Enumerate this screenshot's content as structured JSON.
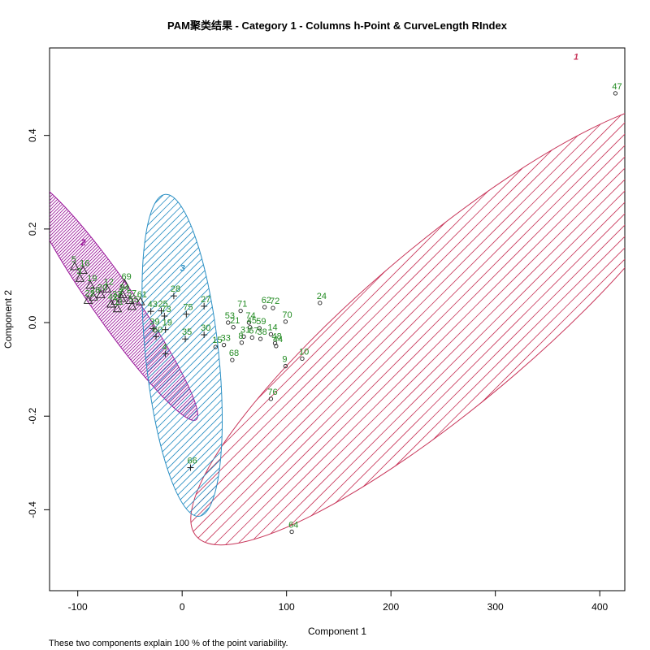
{
  "chart_data": {
    "type": "scatter",
    "title": "PAM聚类结果 - Category  1  - Columns  h-Point  &  CurveLength RIndex",
    "xlabel": "Component 1",
    "ylabel": "Component 2",
    "caption": "These two components explain 100 % of the point variability.",
    "xlim": [
      -127,
      424
    ],
    "ylim": [
      -0.573,
      0.587
    ],
    "xticks": [
      -100,
      0,
      100,
      200,
      300,
      400
    ],
    "yticks": [
      -0.4,
      -0.2,
      0.0,
      0.2,
      0.4
    ],
    "xtick_labels": [
      "-100",
      "0",
      "100",
      "200",
      "300",
      "400"
    ],
    "ytick_labels": [
      "-0.4",
      "-0.2",
      "0.0",
      "0.2",
      "0.4"
    ],
    "colors": {
      "cluster1": "#c8365a",
      "cluster2": "#9b1a9b",
      "cluster3": "#2a8fc4",
      "point_label": "#228b22",
      "marker": "#222222"
    },
    "clusters": [
      {
        "id": "1",
        "label": "1",
        "center_xy": [
          257,
          0.0
        ],
        "semi_major": 318,
        "semi_minor": 78,
        "angle_deg": 40,
        "label_xy": [
          375,
          0.562
        ],
        "color": "#c8365a",
        "hatch_angle": -45
      },
      {
        "id": "2",
        "label": "2",
        "center_xy": [
          -67,
          0.048
        ],
        "semi_major": 140,
        "semi_minor": 20,
        "angle_deg": -55,
        "label_xy": [
          -97,
          0.165
        ],
        "color": "#9b1a9b",
        "hatch_angle": -45
      },
      {
        "id": "3",
        "label": "3",
        "center_xy": [
          0,
          -0.07
        ],
        "semi_major": 155,
        "semi_minor": 35,
        "angle_deg": -84,
        "label_xy": [
          -2,
          0.11
        ],
        "color": "#2a8fc4",
        "hatch_angle": -45
      }
    ],
    "series": [
      {
        "cluster": "1",
        "marker": "circle",
        "points": [
          {
            "label": "47",
            "x": 415,
            "y": 0.49
          },
          {
            "label": "24",
            "x": 132,
            "y": 0.042
          },
          {
            "label": "70",
            "x": 99,
            "y": 0.002
          },
          {
            "label": "72",
            "x": 87,
            "y": 0.031
          },
          {
            "label": "62",
            "x": 79,
            "y": 0.033
          },
          {
            "label": "71",
            "x": 56,
            "y": 0.025
          },
          {
            "label": "53",
            "x": 44,
            "y": 0.0
          },
          {
            "label": "74",
            "x": 64,
            "y": 0.0
          },
          {
            "label": "59",
            "x": 74,
            "y": -0.012
          },
          {
            "label": "45",
            "x": 65,
            "y": -0.01
          },
          {
            "label": "14",
            "x": 85,
            "y": -0.025
          },
          {
            "label": "48",
            "x": 89,
            "y": -0.044
          },
          {
            "label": "44",
            "x": 90,
            "y": -0.05
          },
          {
            "label": "38",
            "x": 75,
            "y": -0.035
          },
          {
            "label": "67",
            "x": 67,
            "y": -0.032
          },
          {
            "label": "21",
            "x": 49,
            "y": -0.01
          },
          {
            "label": "31",
            "x": 59,
            "y": -0.03
          },
          {
            "label": "8",
            "x": 57,
            "y": -0.043
          },
          {
            "label": "68",
            "x": 48,
            "y": -0.08
          },
          {
            "label": "33",
            "x": 40,
            "y": -0.048
          },
          {
            "label": "15",
            "x": 32,
            "y": -0.052
          },
          {
            "label": "10",
            "x": 115,
            "y": -0.077
          },
          {
            "label": "9",
            "x": 99,
            "y": -0.093
          },
          {
            "label": "76",
            "x": 85,
            "y": -0.163
          },
          {
            "label": "64",
            "x": 105,
            "y": -0.447
          }
        ]
      },
      {
        "cluster": "2",
        "marker": "triangle",
        "points": [
          {
            "label": "5",
            "x": -103,
            "y": 0.12
          },
          {
            "label": "16",
            "x": -95,
            "y": 0.112
          },
          {
            "label": "69",
            "x": -55,
            "y": 0.083
          },
          {
            "label": "12",
            "x": -72,
            "y": 0.072
          },
          {
            "label": "34",
            "x": -57,
            "y": 0.06
          },
          {
            "label": "61",
            "x": -40,
            "y": 0.045
          },
          {
            "label": "26",
            "x": -85,
            "y": 0.055
          },
          {
            "label": "32",
            "x": -64,
            "y": 0.046
          },
          {
            "label": "57",
            "x": -50,
            "y": 0.048
          },
          {
            "label": "20",
            "x": -78,
            "y": 0.06
          },
          {
            "label": "19",
            "x": -88,
            "y": 0.08
          },
          {
            "label": "42",
            "x": -68,
            "y": 0.04
          },
          {
            "label": "55",
            "x": -48,
            "y": 0.035
          },
          {
            "label": "2",
            "x": -58,
            "y": 0.052
          },
          {
            "label": "22",
            "x": -90,
            "y": 0.048
          },
          {
            "label": "3",
            "x": -98,
            "y": 0.095
          },
          {
            "label": "11",
            "x": -62,
            "y": 0.03
          }
        ]
      },
      {
        "cluster": "3",
        "marker": "plus",
        "points": [
          {
            "label": "28",
            "x": -8,
            "y": 0.057
          },
          {
            "label": "27",
            "x": 21,
            "y": 0.035
          },
          {
            "label": "75",
            "x": 4,
            "y": 0.018
          },
          {
            "label": "43",
            "x": -30,
            "y": 0.024
          },
          {
            "label": "25",
            "x": -20,
            "y": 0.025
          },
          {
            "label": "73",
            "x": -17,
            "y": 0.014
          },
          {
            "label": "19",
            "x": -16,
            "y": -0.015
          },
          {
            "label": "39",
            "x": -28,
            "y": -0.013
          },
          {
            "label": "60",
            "x": -25,
            "y": -0.03
          },
          {
            "label": "35",
            "x": 3,
            "y": -0.035
          },
          {
            "label": "30",
            "x": 21,
            "y": -0.026
          },
          {
            "label": "4",
            "x": -16,
            "y": -0.067
          },
          {
            "label": "66",
            "x": 8,
            "y": -0.31
          }
        ]
      }
    ]
  }
}
